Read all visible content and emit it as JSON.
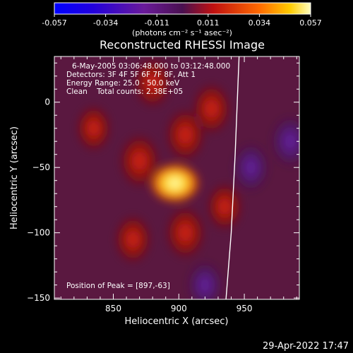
{
  "chart_data": {
    "type": "heatmap",
    "title": "Reconstructed RHESSI Image",
    "xlabel": "Heliocentric X (arcsec)",
    "ylabel": "Heliocentric Y (arcsec)",
    "xlim": [
      805,
      992
    ],
    "ylim": [
      -151,
      35
    ],
    "xticks": [
      850,
      900,
      950
    ],
    "yticks": [
      0,
      -50,
      -100,
      -150
    ],
    "colorbar": {
      "ticks": [
        "-0.057",
        "-0.034",
        "-0.011",
        "0.011",
        "0.034",
        "0.057"
      ],
      "units": "(photons cm⁻² s⁻¹ asec⁻²)",
      "range": [
        -0.057,
        0.057
      ]
    },
    "annotations": {
      "time": "6-May-2005 03:06:48.000 to 03:12:48.000",
      "detectors": "Detectors: 3F 4F 5F 6F 7F 8F, Att 1",
      "energy": "Energy Range: 25.0 - 50.0 keV",
      "clean": "Clean    Total counts: 2.38E+05",
      "peak": "Position of Peak = [897,-63]"
    },
    "peak": {
      "x": 897,
      "y": -63
    },
    "limb_line": [
      [
        946,
        35
      ],
      [
        943,
        -40
      ],
      [
        940,
        -100
      ],
      [
        936,
        -151
      ]
    ],
    "sources": [
      {
        "x": 897,
        "y": -62,
        "value": 0.057
      },
      {
        "x": 870,
        "y": -45,
        "value": 0.022
      },
      {
        "x": 905,
        "y": -25,
        "value": 0.02
      },
      {
        "x": 925,
        "y": -5,
        "value": 0.018
      },
      {
        "x": 880,
        "y": 15,
        "value": 0.016
      },
      {
        "x": 905,
        "y": -100,
        "value": 0.02
      },
      {
        "x": 865,
        "y": -105,
        "value": 0.014
      },
      {
        "x": 935,
        "y": -80,
        "value": 0.012
      },
      {
        "x": 835,
        "y": -20,
        "value": 0.01
      },
      {
        "x": 955,
        "y": -50,
        "value": -0.012
      },
      {
        "x": 985,
        "y": -30,
        "value": -0.016
      },
      {
        "x": 920,
        "y": -140,
        "value": -0.01
      }
    ]
  },
  "timestamp": "29-Apr-2022 17:47"
}
